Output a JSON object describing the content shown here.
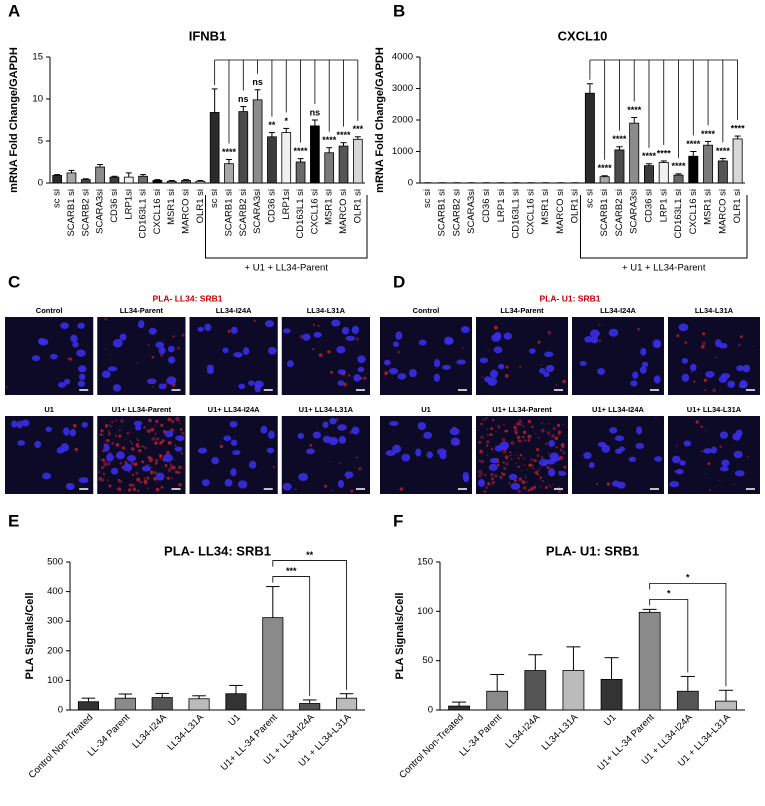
{
  "chart_data": [
    {
      "type": "bar",
      "panel": "A",
      "title": "IFNB1",
      "y_label": "mRNA Fold Change/GAPDH",
      "categories": [
        "sc si",
        "SCARB1 si",
        "SCARB2 si",
        "SCARA3si",
        "CD36 si",
        "LRP1si",
        "CD163L1 si",
        "CXCL16 si",
        "MSR1 si",
        "MARCO si",
        "OLR1 si",
        "sc si",
        "SCARB1 si",
        "SCARB2 si",
        "SCARA3si",
        "CD36 si",
        "LRP1si",
        "CD163L1 si",
        "CXCL16 si",
        "MSR1 si",
        "MARCO si",
        "OLR1 si"
      ],
      "values": [
        0.9,
        1.2,
        0.4,
        1.9,
        0.7,
        0.7,
        0.8,
        0.3,
        0.2,
        0.3,
        0.2,
        8.4,
        2.3,
        8.5,
        9.9,
        5.5,
        6.0,
        2.5,
        6.8,
        3.6,
        4.4,
        5.2
      ],
      "errors": [
        0.1,
        0.3,
        0.1,
        0.3,
        0.1,
        0.5,
        0.2,
        0.1,
        0.1,
        0.1,
        0.1,
        2.8,
        0.5,
        0.6,
        1.2,
        0.5,
        0.5,
        0.4,
        0.7,
        0.6,
        0.4,
        0.3
      ],
      "colors": [
        "#2b2b2b",
        "#a8a8a8",
        "#4a4a4a",
        "#8c8c8c",
        "#3c3c3c",
        "#f0f0f0",
        "#6a6a6a",
        "#000000",
        "#7a7a7a",
        "#555555",
        "#d8d8d8",
        "#2b2b2b",
        "#a8a8a8",
        "#4a4a4a",
        "#8c8c8c",
        "#3c3c3c",
        "#f0f0f0",
        "#6a6a6a",
        "#000000",
        "#7a7a7a",
        "#555555",
        "#d8d8d8"
      ],
      "significance": [
        null,
        null,
        null,
        null,
        null,
        null,
        null,
        null,
        null,
        null,
        null,
        null,
        "****",
        "ns",
        "ns",
        "**",
        "*",
        "****",
        "ns",
        "****",
        "****",
        "***"
      ],
      "group_label": "+ U1 + LL34-Parent",
      "ylim": [
        0,
        15
      ],
      "yticks": [
        0,
        5,
        10,
        15
      ]
    },
    {
      "type": "bar",
      "panel": "B",
      "title": "CXCL10",
      "y_label": "mRNA Fold Change/GAPDH",
      "categories": [
        "sc si",
        "SCARB1 si",
        "SCARB2 si",
        "SCARA3si",
        "CD36 si",
        "LRP1 si",
        "CD163L1 si",
        "CXCL16 si",
        "MSR1 si",
        "MARCO si",
        "OLR1 si",
        "sc si",
        "SCARB1 si",
        "SCARB2 si",
        "SCARA3si",
        "CD36 si",
        "LRP1 si",
        "CD163L1 si",
        "CXCL16 si",
        "MSR1 si",
        "MARCO si",
        "OLR1 si"
      ],
      "values": [
        5,
        5,
        5,
        5,
        5,
        5,
        5,
        5,
        5,
        5,
        5,
        2850,
        200,
        1050,
        1900,
        550,
        650,
        250,
        850,
        1200,
        700,
        1400
      ],
      "errors": [
        2,
        2,
        2,
        2,
        2,
        2,
        2,
        2,
        2,
        2,
        2,
        300,
        30,
        100,
        180,
        60,
        50,
        40,
        150,
        120,
        80,
        90
      ],
      "colors": [
        "#2b2b2b",
        "#a8a8a8",
        "#4a4a4a",
        "#8c8c8c",
        "#3c3c3c",
        "#f0f0f0",
        "#6a6a6a",
        "#000000",
        "#7a7a7a",
        "#555555",
        "#d8d8d8",
        "#2b2b2b",
        "#a8a8a8",
        "#4a4a4a",
        "#8c8c8c",
        "#3c3c3c",
        "#f0f0f0",
        "#6a6a6a",
        "#000000",
        "#7a7a7a",
        "#555555",
        "#d8d8d8"
      ],
      "significance": [
        null,
        null,
        null,
        null,
        null,
        null,
        null,
        null,
        null,
        null,
        null,
        null,
        "****",
        "****",
        "****",
        "****",
        "****",
        "****",
        "****",
        "****",
        "****",
        "****"
      ],
      "group_label": "+ U1 + LL34-Parent",
      "ylim": [
        0,
        4000
      ],
      "yticks": [
        0,
        1000,
        2000,
        3000,
        4000
      ]
    },
    {
      "type": "bar",
      "panel": "E",
      "title": "PLA- LL34: SRB1",
      "y_label": "PLA Signals/Cell",
      "categories": [
        "Control Non-Treated",
        "LL-34 Parent",
        "LL34-I24A",
        "LL34-L31A",
        "U1",
        "U1+ LL-34 Parent",
        "U1 + LL34-I24A",
        "U1 + LL34-L31A"
      ],
      "values": [
        28,
        40,
        42,
        38,
        55,
        312,
        22,
        40
      ],
      "errors": [
        12,
        14,
        14,
        10,
        28,
        105,
        12,
        15
      ],
      "colors": [
        "#333333",
        "#8a8a8a",
        "#555555",
        "#bbbbbb",
        "#333333",
        "#8a8a8a",
        "#555555",
        "#bbbbbb"
      ],
      "comparisons": [
        {
          "from": 5,
          "to": 6,
          "label": "***"
        },
        {
          "from": 5,
          "to": 7,
          "label": "**"
        }
      ],
      "ylim": [
        0,
        500
      ],
      "yticks": [
        0,
        100,
        200,
        300,
        400,
        500
      ]
    },
    {
      "type": "bar",
      "panel": "F",
      "title": "PLA- U1: SRB1",
      "y_label": "PLA Signals/Cell",
      "categories": [
        "Control Non-Treated",
        "LL-34 Parent",
        "LL34-I24A",
        "LL34-L31A",
        "U1",
        "U1+ LL-34 Parent",
        "U1 + LL34-I24A",
        "U1 + LL34-L31A"
      ],
      "values": [
        4,
        19,
        40,
        40,
        31,
        99,
        19,
        9
      ],
      "errors": [
        4,
        17,
        16,
        24,
        22,
        3,
        15,
        11
      ],
      "colors": [
        "#333333",
        "#8a8a8a",
        "#555555",
        "#bbbbbb",
        "#333333",
        "#8a8a8a",
        "#555555",
        "#bbbbbb"
      ],
      "comparisons": [
        {
          "from": 5,
          "to": 6,
          "label": "*"
        },
        {
          "from": 5,
          "to": 7,
          "label": "*"
        }
      ],
      "ylim": [
        0,
        150
      ],
      "yticks": [
        0,
        50,
        100,
        150
      ]
    }
  ],
  "image_panels": [
    {
      "panel": "C",
      "title": "PLA- LL34: SRB1",
      "labels": [
        "Control",
        "LL34-Parent",
        "LL34-I24A",
        "LL34-L31A",
        "U1",
        "U1+ LL34-Parent",
        "U1+ LL34-I24A",
        "U1+ LL34-L31A"
      ]
    },
    {
      "panel": "D",
      "title": "PLA- U1: SRB1",
      "labels": [
        "Control",
        "LL34-Parent",
        "LL34-I24A",
        "LL34-L31A",
        "U1",
        "U1+ LL34-Parent",
        "U1+ LL34-I24A",
        "U1+ LL34-L31A"
      ]
    }
  ]
}
